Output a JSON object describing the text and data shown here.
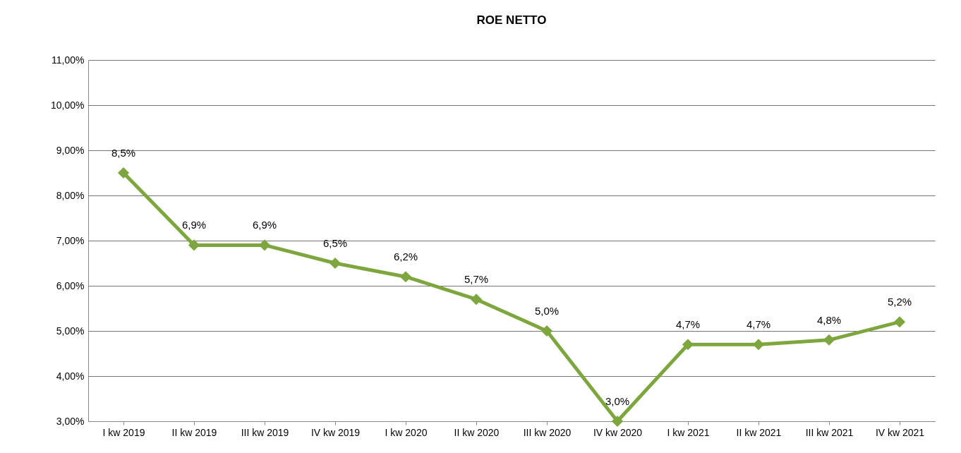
{
  "chart_data": {
    "type": "line",
    "title": "ROE NETTO",
    "categories": [
      "I kw 2019",
      "II kw 2019",
      "III kw 2019",
      "IV kw 2019",
      "I kw 2020",
      "II kw 2020",
      "III kw 2020",
      "IV kw 2020",
      "I kw 2021",
      "II kw 2021",
      "III kw 2021",
      "IV kw 2021"
    ],
    "series": [
      {
        "color": "#7ea63e",
        "values": [
          8.5,
          6.9,
          6.9,
          6.5,
          6.2,
          5.7,
          5.0,
          3.0,
          4.7,
          4.7,
          4.8,
          5.2
        ],
        "value_labels": [
          "8,5%",
          "6,9%",
          "6,9%",
          "6,5%",
          "6,2%",
          "5,7%",
          "5,0%",
          "3,0%",
          "4,7%",
          "4,7%",
          "4,8%",
          "5,2%"
        ]
      }
    ],
    "ylim": [
      3,
      11
    ],
    "yticks": [
      {
        "value": 3,
        "label": "3,00%"
      },
      {
        "value": 4,
        "label": "4,00%"
      },
      {
        "value": 5,
        "label": "5,00%"
      },
      {
        "value": 6,
        "label": "6,00%"
      },
      {
        "value": 7,
        "label": "7,00%"
      },
      {
        "value": 8,
        "label": "8,00%"
      },
      {
        "value": 9,
        "label": "9,00%"
      },
      {
        "value": 10,
        "label": "10,00%"
      },
      {
        "value": 11,
        "label": "11,00%"
      }
    ],
    "grid": "y",
    "marker": "diamond",
    "line_style": "solid"
  }
}
